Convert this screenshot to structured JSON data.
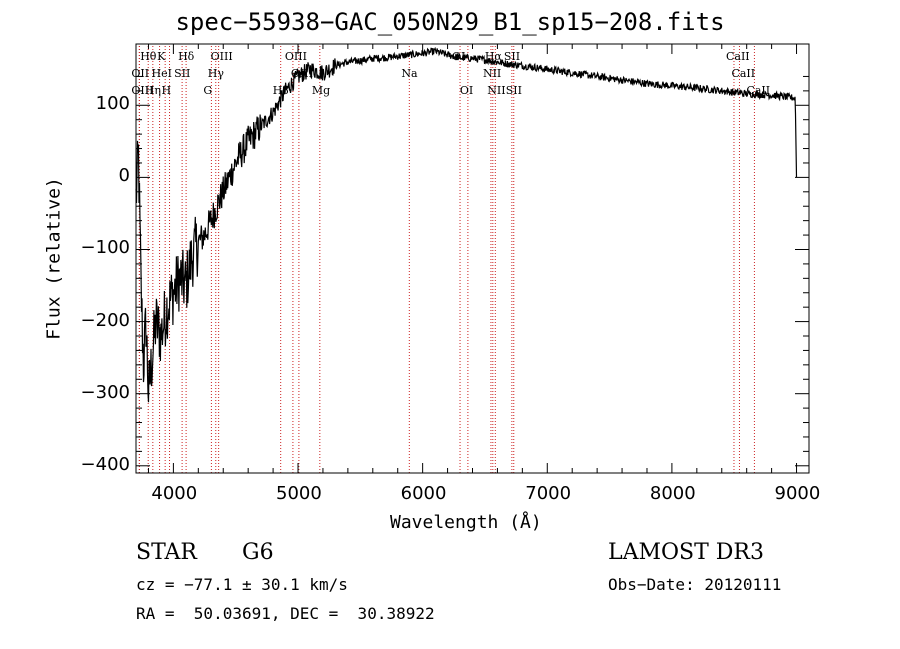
{
  "chart_data": {
    "type": "line",
    "title": "spec−55938−GAC_050N29_B1_sp15−208.fits",
    "xlabel": "Wavelength (Å)",
    "ylabel": "Flux (relative)",
    "xlim": [
      3700,
      9100
    ],
    "ylim": [
      -410,
      185
    ],
    "xticks": [
      4000,
      5000,
      6000,
      7000,
      8000,
      9000
    ],
    "xtick_labels": [
      "4000",
      "5000",
      "6000",
      "7000",
      "8000",
      "9000"
    ],
    "yticks": [
      -400,
      -300,
      -200,
      -100,
      0,
      100
    ],
    "ytick_labels": [
      "−400",
      "−300",
      "−200",
      "−100",
      "0",
      "100"
    ],
    "spectrum_envelope": {
      "x": [
        3700,
        3720,
        3740,
        3760,
        3780,
        3800,
        3830,
        3860,
        3900,
        3950,
        4000,
        4050,
        4100,
        4150,
        4200,
        4250,
        4300,
        4350,
        4400,
        4500,
        4600,
        4700,
        4800,
        4900,
        5000,
        5100,
        5200,
        5300,
        5400,
        5500,
        5600,
        5700,
        5800,
        5900,
        6000,
        6100,
        6200,
        6300,
        6400,
        6500,
        6600,
        6700,
        6800,
        7000,
        7200,
        7400,
        7600,
        7800,
        8000,
        8200,
        8400,
        8500,
        8600,
        8700,
        8800,
        8900,
        8990,
        9000
      ],
      "y": [
        -30,
        30,
        -150,
        -260,
        -200,
        -300,
        -250,
        -200,
        -220,
        -180,
        -160,
        -140,
        -150,
        -110,
        -90,
        -80,
        -60,
        -40,
        -20,
        20,
        50,
        70,
        90,
        120,
        140,
        150,
        145,
        155,
        160,
        162,
        165,
        166,
        168,
        170,
        172,
        175,
        170,
        166,
        165,
        163,
        160,
        157,
        155,
        150,
        145,
        140,
        135,
        130,
        127,
        124,
        120,
        118,
        116,
        115,
        114,
        112,
        110,
        0
      ]
    },
    "emission_lines": [
      {
        "name": "Hθ",
        "wavelength": 3798,
        "row": 1
      },
      {
        "name": "OII",
        "wavelength": 3727,
        "row": 2
      },
      {
        "name": "OIII",
        "wavelength": 3727,
        "row": 3
      },
      {
        "name": "K",
        "wavelength": 3934,
        "row": 1
      },
      {
        "name": "HeI",
        "wavelength": 3889,
        "row": 2
      },
      {
        "name": "Hη",
        "wavelength": 3835,
        "row": 3
      },
      {
        "name": "Hδ",
        "wavelength": 4102,
        "row": 1
      },
      {
        "name": "SII",
        "wavelength": 4070,
        "row": 2
      },
      {
        "name": "H",
        "wavelength": 3969,
        "row": 3
      },
      {
        "name": "OIII",
        "wavelength": 4363,
        "row": 1
      },
      {
        "name": "Hγ",
        "wavelength": 4340,
        "row": 2
      },
      {
        "name": "G",
        "wavelength": 4305,
        "row": 3
      },
      {
        "name": "OIII",
        "wavelength": 4959,
        "row": 1
      },
      {
        "name": "OIII",
        "wavelength": 5007,
        "row": 2
      },
      {
        "name": "Hβ",
        "wavelength": 4861,
        "row": 3
      },
      {
        "name": "Mg",
        "wavelength": 5175,
        "row": 3
      },
      {
        "name": "Na",
        "wavelength": 5893,
        "row": 2
      },
      {
        "name": "OI",
        "wavelength": 6300,
        "row": 1
      },
      {
        "name": "OI",
        "wavelength": 6363,
        "row": 3
      },
      {
        "name": "Hα",
        "wavelength": 6563,
        "row": 1
      },
      {
        "name": "NII",
        "wavelength": 6548,
        "row": 2
      },
      {
        "name": "NII",
        "wavelength": 6583,
        "row": 3
      },
      {
        "name": "SII",
        "wavelength": 6716,
        "row": 1
      },
      {
        "name": "SII",
        "wavelength": 6731,
        "row": 3
      },
      {
        "name": "CaII",
        "wavelength": 8498,
        "row": 1
      },
      {
        "name": "CaII",
        "wavelength": 8542,
        "row": 2
      },
      {
        "name": "CaII",
        "wavelength": 8662,
        "row": 3
      }
    ]
  },
  "info": {
    "object_class": "STAR",
    "subclass": "G6",
    "survey": "LAMOST DR3",
    "cz": "cz = −77.1 ± 30.1 km/s",
    "obs_date": "Obs−Date: 20120111",
    "coords": "RA =  50.03691, DEC =  30.38922"
  }
}
